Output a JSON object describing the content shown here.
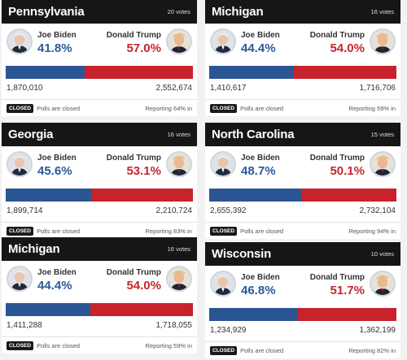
{
  "cards": [
    {
      "state": "Pennsylvania",
      "votes": "20 votes",
      "biden_name": "Joe Biden",
      "trump_name": "Donald Trump",
      "biden_pct": "41.8%",
      "trump_pct": "57.0%",
      "biden_votes": "1,870,010",
      "trump_votes": "2,552,674",
      "biden_share": 0.423,
      "badge": "CLOSED",
      "status": "Polls are closed",
      "reporting": "Reporting 64% in"
    },
    {
      "state": "Michigan",
      "votes": "16 votes",
      "biden_name": "Joe Biden",
      "trump_name": "Donald Trump",
      "biden_pct": "44.4%",
      "trump_pct": "54.0%",
      "biden_votes": "1,410,617",
      "trump_votes": "1,716,706",
      "biden_share": 0.451,
      "badge": "CLOSED",
      "status": "Polls are closed",
      "reporting": "Reporting 59% in"
    },
    {
      "state": "Georgia",
      "votes": "16 votes",
      "biden_name": "Joe Biden",
      "trump_name": "Donald Trump",
      "biden_pct": "45.6%",
      "trump_pct": "53.1%",
      "biden_votes": "1,899,714",
      "trump_votes": "2,210,724",
      "biden_share": 0.462,
      "badge": "CLOSED",
      "status": "Polls are closed",
      "reporting": "Reporting 83% in"
    },
    {
      "state": "North Carolina",
      "votes": "15 votes",
      "biden_name": "Joe Biden",
      "trump_name": "Donald Trump",
      "biden_pct": "48.7%",
      "trump_pct": "50.1%",
      "biden_votes": "2,655,392",
      "trump_votes": "2,732,104",
      "biden_share": 0.493,
      "badge": "CLOSED",
      "status": "Polls are closed",
      "reporting": "Reporting 94% in"
    },
    {
      "state": "Michigan",
      "votes": "16 votes",
      "biden_name": "Joe Biden",
      "trump_name": "Donald Trump",
      "biden_pct": "44.4%",
      "trump_pct": "54.0%",
      "biden_votes": "1,411,288",
      "trump_votes": "1,718,055",
      "biden_share": 0.451,
      "badge": "CLOSED",
      "status": "Polls are closed",
      "reporting": "Reporting 59% in"
    },
    {
      "state": "Wisconsin",
      "votes": "10 votes",
      "biden_name": "Joe Biden",
      "trump_name": "Donald Trump",
      "biden_pct": "46.8%",
      "trump_pct": "51.7%",
      "biden_votes": "1,234,929",
      "trump_votes": "1,362,199",
      "biden_share": 0.475,
      "badge": "CLOSED",
      "status": "Polls are closed",
      "reporting": "Reporting 82% in"
    }
  ]
}
